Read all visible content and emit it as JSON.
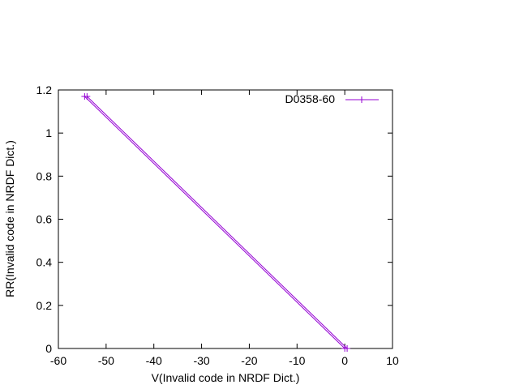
{
  "chart_data": {
    "type": "line",
    "xlabel": "V(Invalid code in NRDF Dict.)",
    "ylabel": "RR(Invalid code in NRDF Dict.)",
    "xlim": [
      -60,
      10
    ],
    "ylim": [
      0,
      1.2
    ],
    "xticks": [
      "-60",
      "-50",
      "-40",
      "-30",
      "-20",
      "-10",
      "0",
      "10"
    ],
    "yticks": [
      "0",
      "0.2",
      "0.4",
      "0.6",
      "0.8",
      "1",
      "1.2"
    ],
    "grid": false,
    "legend_position": "top-right",
    "series": [
      {
        "name": "D0358-60",
        "color": "#9400d3",
        "marker": "plus",
        "points": [
          {
            "x": -54.5,
            "y": 1.17
          },
          {
            "x": 0.0,
            "y": 0.0
          },
          {
            "x": 0.5,
            "y": 0.0
          },
          {
            "x": -54.0,
            "y": 1.17
          }
        ]
      }
    ]
  }
}
